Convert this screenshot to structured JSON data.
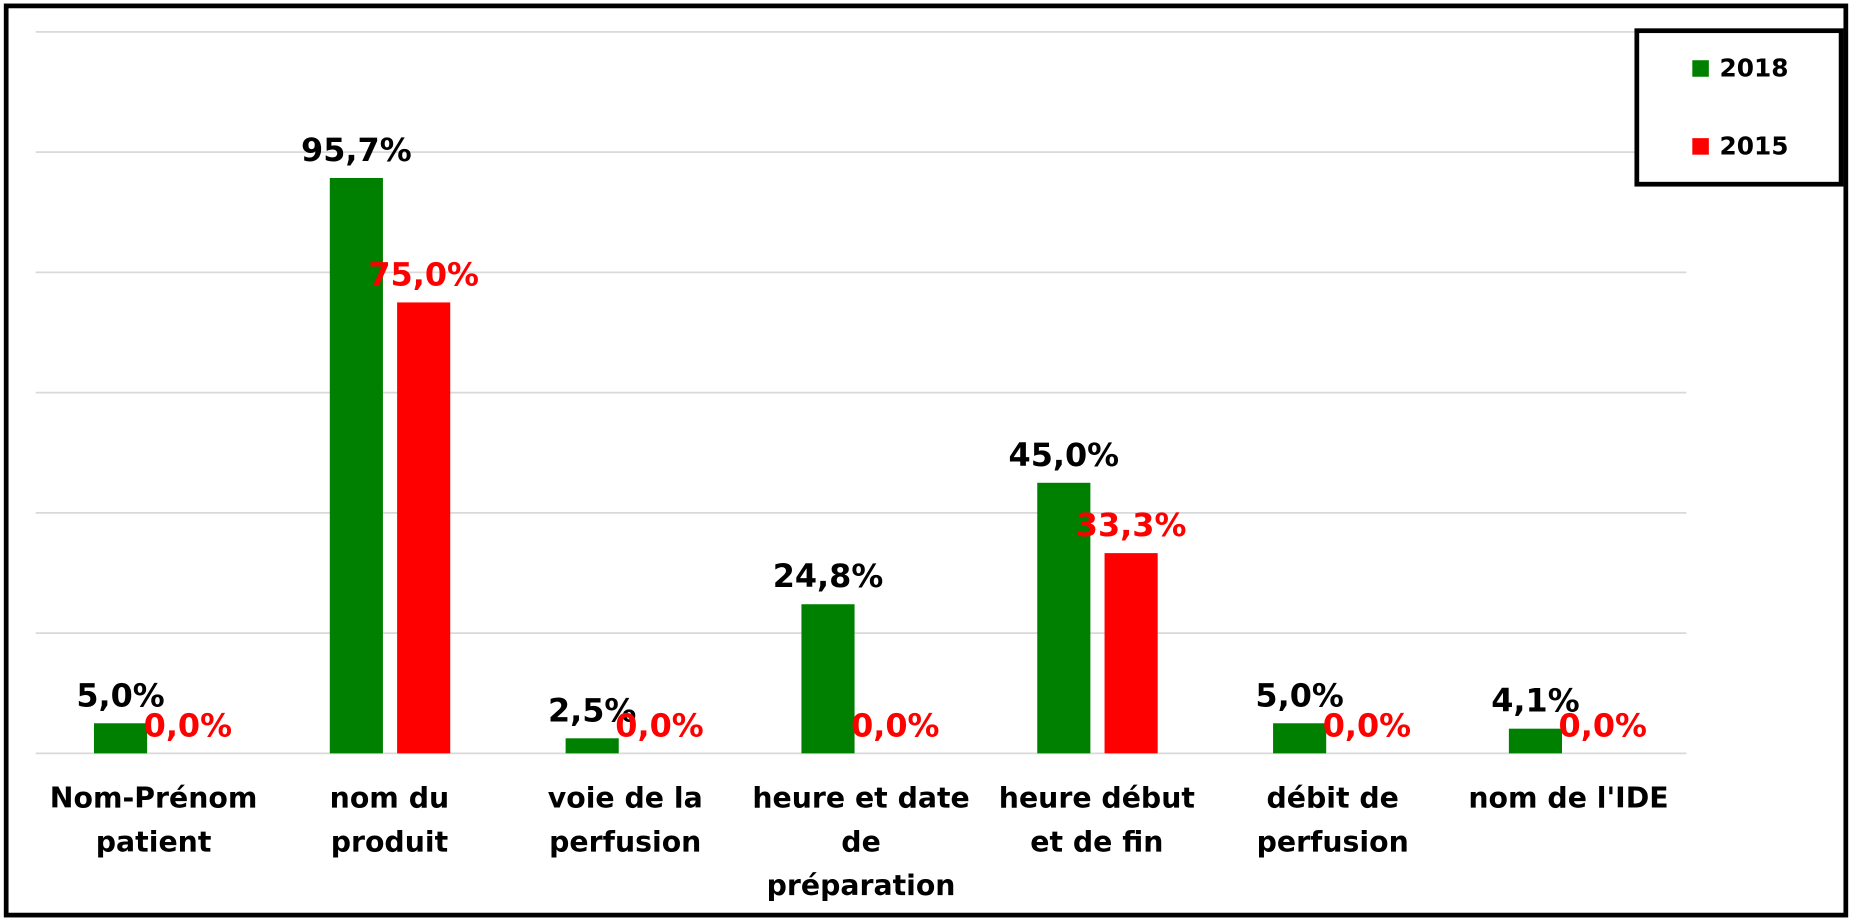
{
  "chart_data": {
    "type": "bar",
    "categories": [
      "Nom-Prénom patient",
      "nom du produit",
      "voie de la perfusion",
      "heure et date de préparation",
      "heure début et de fin",
      "débit de perfusion",
      "nom de l'IDE"
    ],
    "series": [
      {
        "name": "2018",
        "color": "#008000",
        "label_color": "#000000",
        "values": [
          5.0,
          95.7,
          2.5,
          24.8,
          45.0,
          5.0,
          4.1
        ],
        "value_labels": [
          "5,0%",
          "95,7%",
          "2,5%",
          "24,8%",
          "45,0%",
          "5,0%",
          "4,1%"
        ]
      },
      {
        "name": "2015",
        "color": "#ff0000",
        "label_color": "#ff0000",
        "values": [
          0.0,
          75.0,
          0.0,
          0.0,
          33.3,
          0.0,
          0.0
        ],
        "value_labels": [
          "0,0%",
          "75,0%",
          "0,0%",
          "0,0%",
          "33,3%",
          "0,0%",
          "0,0%"
        ]
      }
    ],
    "ylim": [
      0,
      120
    ],
    "yticks": [
      0,
      20,
      40,
      60,
      80,
      100,
      120
    ],
    "grid": true,
    "legend": "top-right"
  }
}
